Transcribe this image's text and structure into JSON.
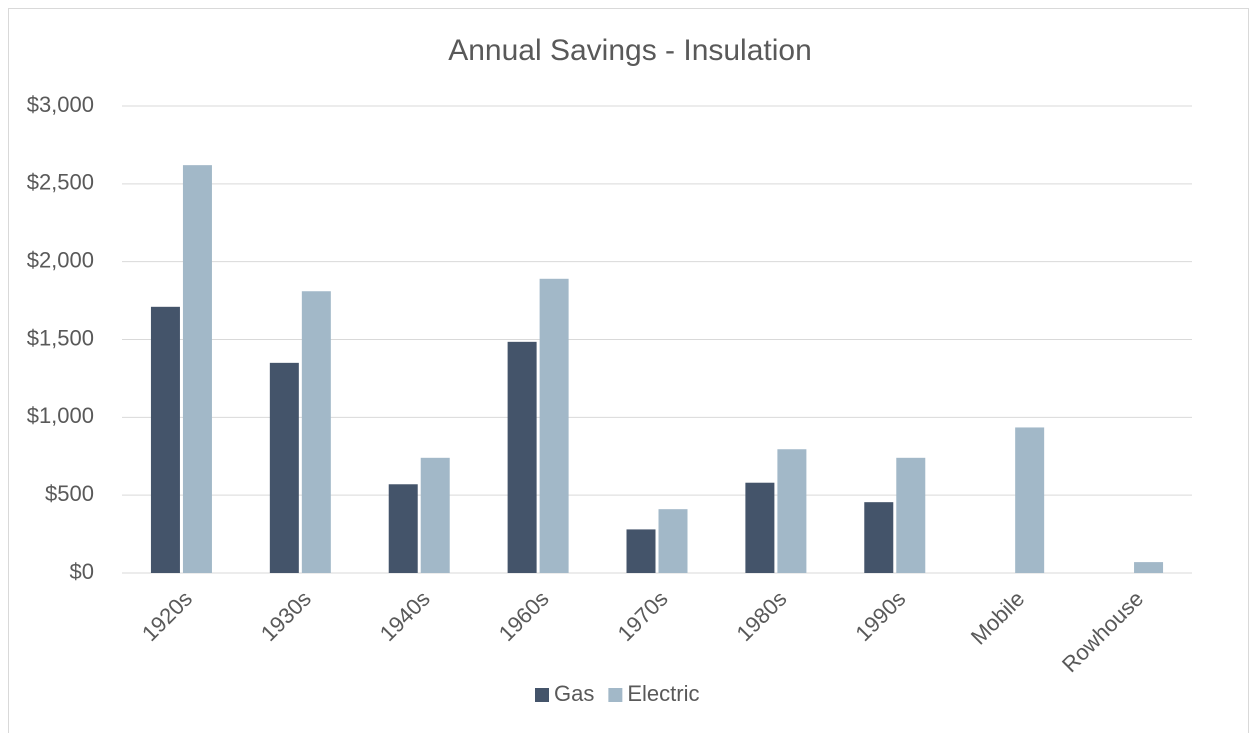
{
  "chart_data": {
    "type": "bar",
    "title": "Annual Savings - Insulation",
    "categories": [
      "1920s",
      "1930s",
      "1940s",
      "1960s",
      "1970s",
      "1980s",
      "1990s",
      "Mobile",
      "Rowhouse"
    ],
    "series": [
      {
        "name": "Gas",
        "color": "#44546a",
        "values": [
          1710,
          1350,
          570,
          1485,
          280,
          580,
          455,
          0,
          0
        ]
      },
      {
        "name": "Electric",
        "color": "#a2b8c8",
        "values": [
          2620,
          1810,
          740,
          1890,
          410,
          795,
          740,
          935,
          70
        ]
      }
    ],
    "ylim": [
      0,
      3000
    ],
    "yticks": [
      {
        "value": 0,
        "label": "$0"
      },
      {
        "value": 500,
        "label": "$500"
      },
      {
        "value": 1000,
        "label": "$1,000"
      },
      {
        "value": 1500,
        "label": "$1,500"
      },
      {
        "value": 2000,
        "label": "$2,000"
      },
      {
        "value": 2500,
        "label": "$2,500"
      },
      {
        "value": 3000,
        "label": "$3,000"
      }
    ],
    "grid": true,
    "legend": "bottom"
  }
}
